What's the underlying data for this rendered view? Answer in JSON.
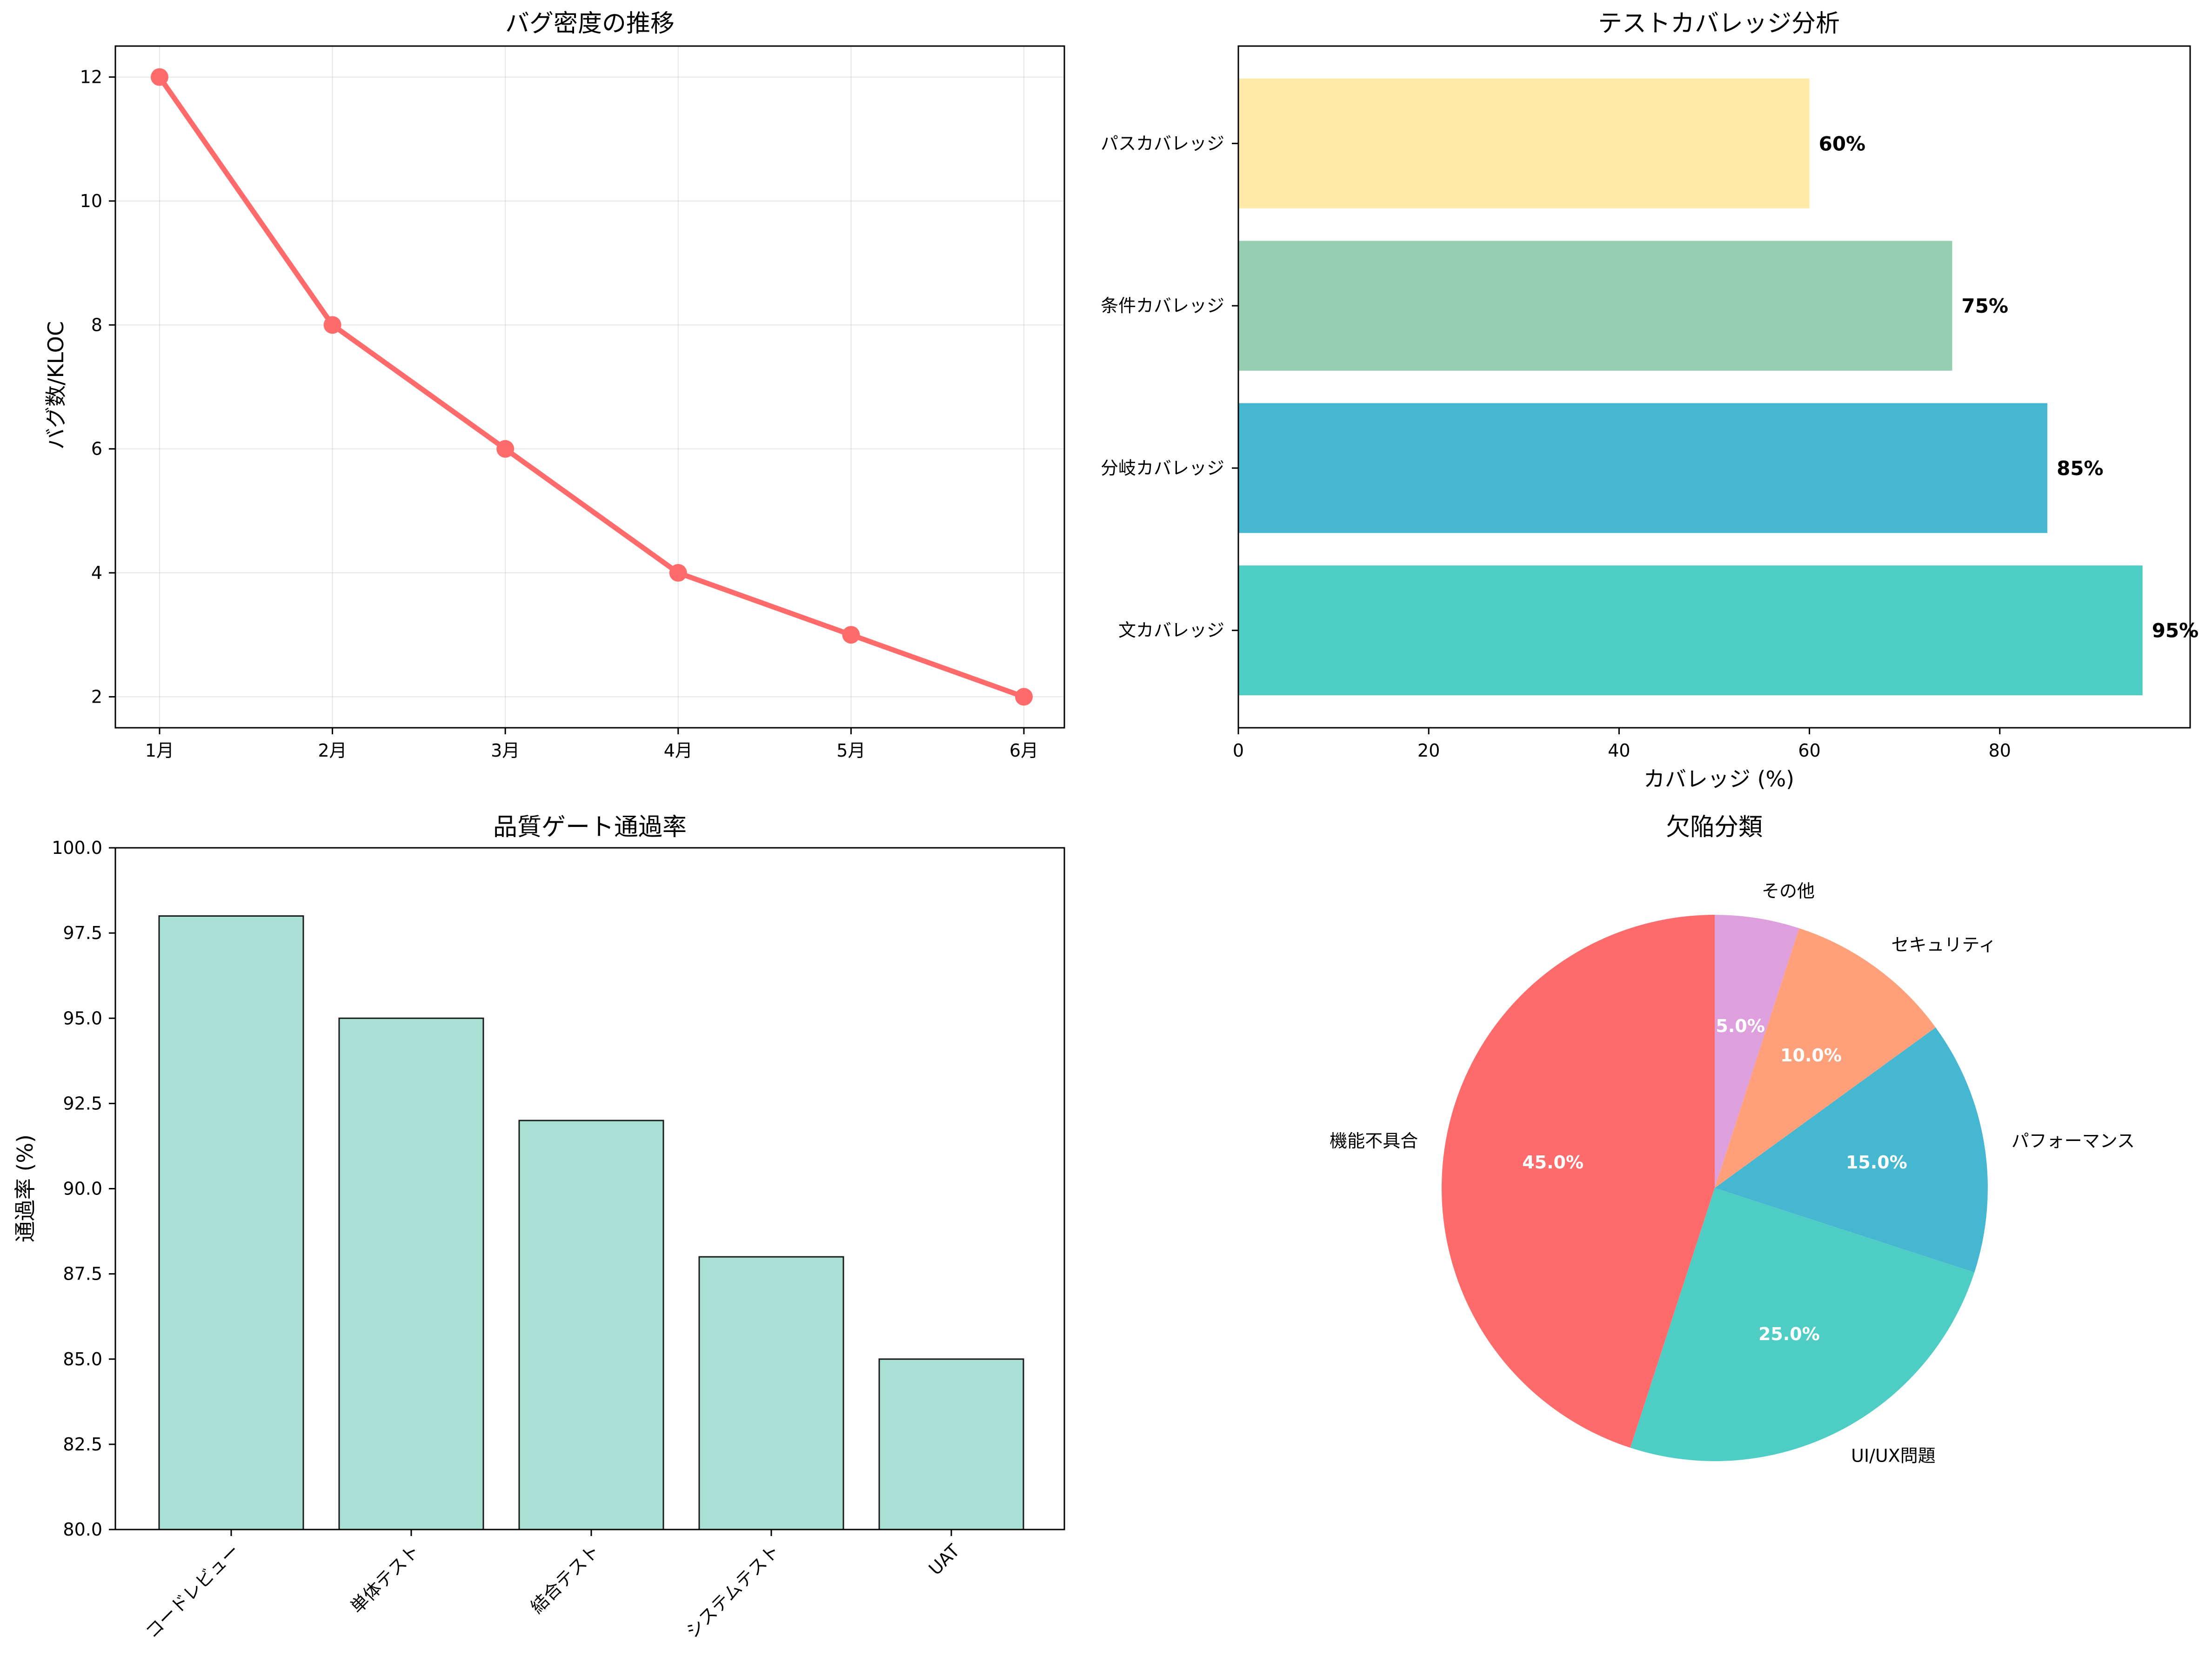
{
  "chart_data": [
    {
      "id": "bug_density",
      "type": "line",
      "title": "バグ密度の推移",
      "xlabel": "",
      "ylabel": "バグ数/KLOC",
      "categories": [
        "1月",
        "2月",
        "3月",
        "4月",
        "5月",
        "6月"
      ],
      "values": [
        12,
        8,
        6,
        4,
        3,
        2
      ],
      "yticks": [
        2,
        4,
        6,
        8,
        10,
        12
      ],
      "ylim": [
        1.5,
        12.5
      ],
      "grid": true,
      "color": "#FF6B6B"
    },
    {
      "id": "coverage",
      "type": "bar",
      "orientation": "horizontal",
      "title": "テストカバレッジ分析",
      "xlabel": "カバレッジ (%)",
      "ylabel": "",
      "categories": [
        "文カバレッジ",
        "分岐カバレッジ",
        "条件カバレッジ",
        "パスカバレッジ"
      ],
      "values": [
        95,
        85,
        75,
        60
      ],
      "value_labels": [
        "95%",
        "85%",
        "75%",
        "60%"
      ],
      "colors": [
        "#4ECDC4",
        "#45B7D1",
        "#96CEB4",
        "#FFEAA7"
      ],
      "xticks": [
        0,
        20,
        40,
        60,
        80
      ],
      "xlim": [
        0,
        100
      ]
    },
    {
      "id": "quality_gate",
      "type": "bar",
      "title": "品質ゲート通過率",
      "xlabel": "",
      "ylabel": "通過率 (%)",
      "categories": [
        "コードレビュー",
        "単体テスト",
        "結合テスト",
        "システムテスト",
        "UAT"
      ],
      "values": [
        98,
        95,
        92,
        88,
        85
      ],
      "yticks": [
        "80.0",
        "82.5",
        "85.0",
        "87.5",
        "90.0",
        "92.5",
        "95.0",
        "97.5",
        "100.0"
      ],
      "ylim": [
        80,
        100
      ],
      "color": "#A8E0D4"
    },
    {
      "id": "defects",
      "type": "pie",
      "title": "欠陥分類",
      "labels": [
        "機能不具合",
        "UI/UX問題",
        "パフォーマンス",
        "セキュリティ",
        "その他"
      ],
      "values": [
        45,
        25,
        15,
        10,
        5
      ],
      "pct_labels": [
        "45.0%",
        "25.0%",
        "15.0%",
        "10.0%",
        "5.0%"
      ],
      "colors": [
        "#FF6B6B",
        "#4ECDC4",
        "#45B7D1",
        "#FFA07A",
        "#DDA0DD"
      ]
    }
  ]
}
